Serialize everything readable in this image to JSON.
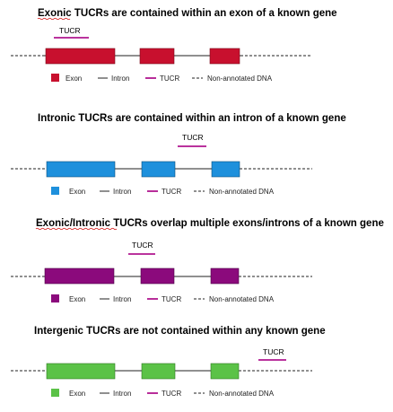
{
  "panels": [
    {
      "key": "exonic",
      "title": "Exonic TUCRs are contained within an exon of a known gene",
      "exon_color": "#c8102e",
      "tucr_location": "exon-1"
    },
    {
      "key": "intronic",
      "title": "Intronic TUCRs are contained within an intron of a known gene",
      "exon_color": "#1e90dc",
      "tucr_location": "intron-2"
    },
    {
      "key": "exonic-intronic",
      "title": "Exonic/Intronic TUCRs overlap multiple exons/introns of a known gene",
      "exon_color": "#8b0a7c",
      "tucr_location": "exon-2 and flanking introns"
    },
    {
      "key": "intergenic",
      "title": "Intergenic TUCRs are not contained within any known gene",
      "exon_color": "#5bc247",
      "tucr_location": "outside gene"
    }
  ],
  "tucr_label": "TUCR",
  "tucr_color": "#b0168f",
  "legend": {
    "exon": "Exon",
    "intron": "Intron",
    "tucr": "TUCR",
    "non_annotated": "Non-annotated DNA"
  }
}
